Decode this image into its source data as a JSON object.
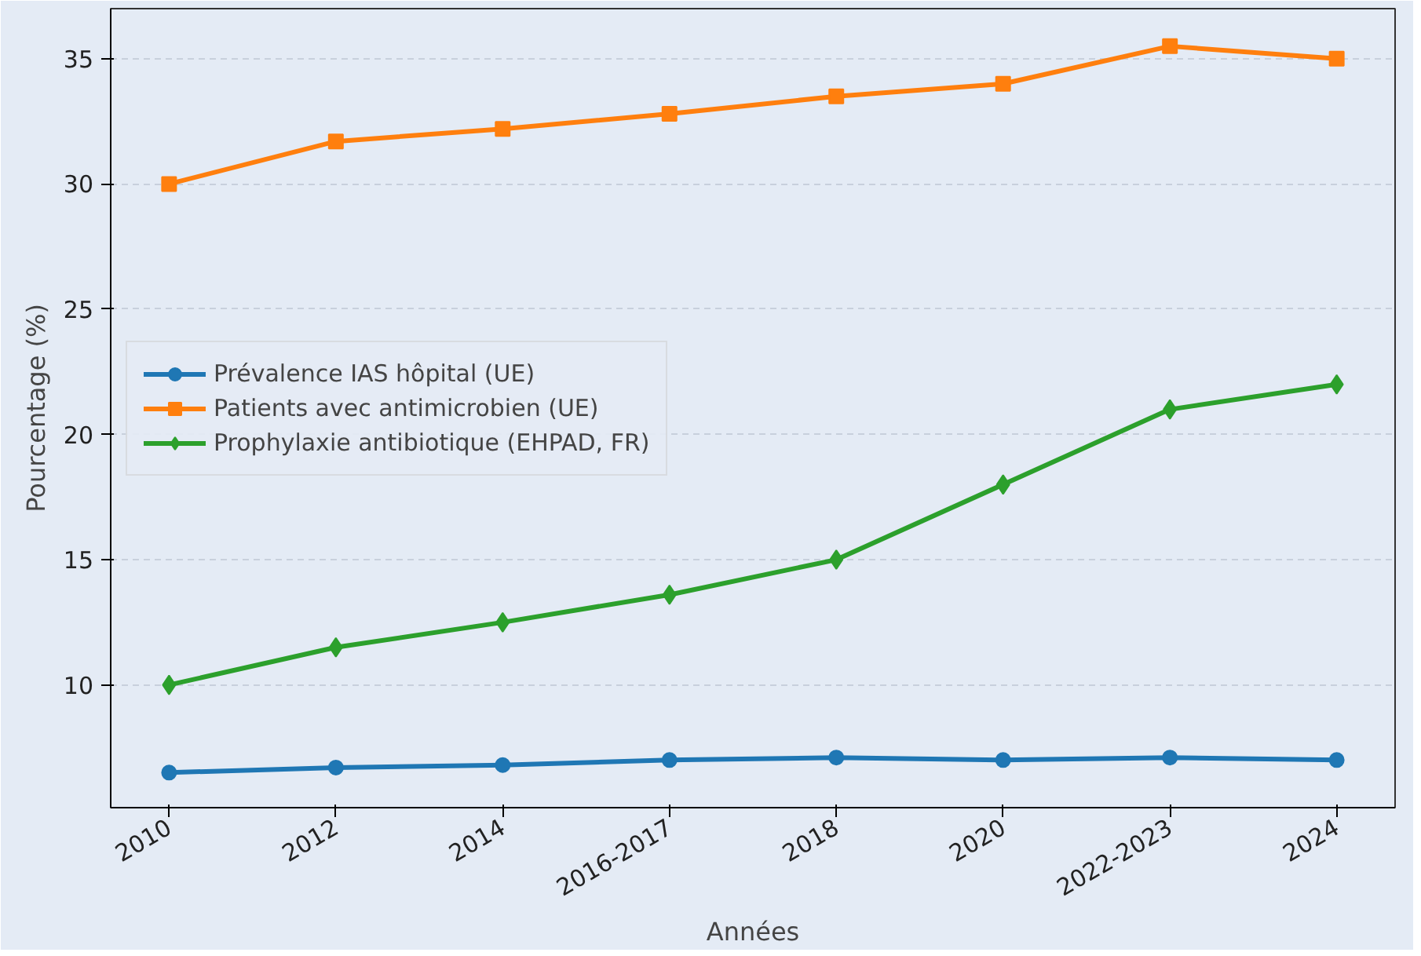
{
  "chart_data": {
    "type": "line",
    "xlabel": "Années",
    "ylabel": "Pourcentage (%)",
    "categories": [
      "2010",
      "2012",
      "2014",
      "2016-2017",
      "2018",
      "2020",
      "2022-2023",
      "2024"
    ],
    "series": [
      {
        "name": "Prévalence IAS hôpital (UE)",
        "color": "#1f77b4",
        "marker": "circle",
        "values": [
          6.5,
          6.7,
          6.8,
          7.0,
          7.1,
          7.0,
          7.1,
          7.0
        ]
      },
      {
        "name": "Patients avec antimicrobien (UE)",
        "color": "#ff7f0e",
        "marker": "square",
        "values": [
          30,
          31.7,
          32.2,
          32.8,
          33.5,
          34,
          35.5,
          35
        ]
      },
      {
        "name": "Prophylaxie antibiotique (EHPAD, FR)",
        "color": "#2ca02c",
        "marker": "diamond",
        "values": [
          10,
          11.5,
          12.5,
          13.6,
          15,
          18,
          21,
          22
        ]
      }
    ],
    "ylim": [
      5.1,
      37
    ],
    "yticks": [
      10,
      15,
      20,
      25,
      30,
      35
    ],
    "grid": "y",
    "legend": "left",
    "line_style": "solid"
  }
}
